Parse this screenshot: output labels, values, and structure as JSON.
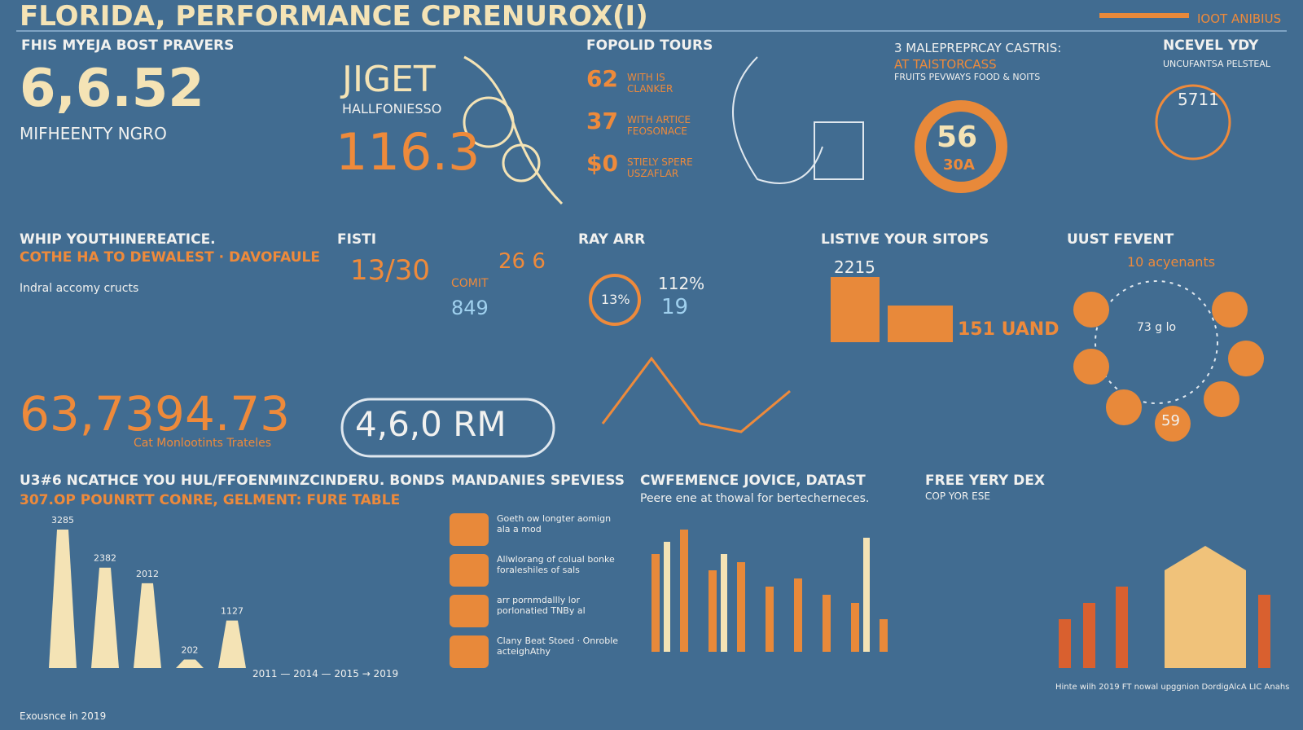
{
  "header": {
    "title": "FLORIDA, PERFORMANCE CPRENUROX(I)",
    "tag": "IOOT ANIBIUS"
  },
  "panels": {
    "p1": {
      "title": "FHIS MYEJA BOST PRAVERS",
      "big": "6,6.52",
      "sub": "MIFHEENTY NGRO"
    },
    "p2": {
      "big": "JIGET",
      "sub": "HALLFONIESSO",
      "num": "116.3"
    },
    "p3": {
      "title": "FOPOLID TOURS",
      "rows": [
        {
          "num": "62",
          "text": "WITH IS CLANKER"
        },
        {
          "num": "37",
          "text": "WITH ARTICE FEOSONACE"
        },
        {
          "num": "$0",
          "text": "STIELY SPERE USZAFLAR"
        }
      ]
    },
    "p4": {
      "title": "3 MALEPREPRCAY CASTRIS:",
      "title2": "AT TAISTORCASS",
      "sub": "FRUITS PEVWAYS FOOD & NOITS",
      "num": "56",
      "num2": "30A"
    },
    "p5": {
      "title": "NCEVEL YDY",
      "sub": "UNCUFANTSA PELSTEAL",
      "num": "5711"
    },
    "p6": {
      "title": "WHIP YOUTHINEREATICE.",
      "sub": "COTHE HA TO DEWALEST · DAVOFAULE",
      "note": "Indral accomy cructs"
    },
    "p7": {
      "title": "FISTI",
      "a": "13/30",
      "b": "26 6",
      "c": "COMIT",
      "d": "849"
    },
    "p8": {
      "title": "RAY ARR",
      "a": "13%",
      "b": "112%",
      "c": "19"
    },
    "p9": {
      "title": "LISTIVE YOUR SITOPS",
      "a": "2215",
      "b": "151 UAND"
    },
    "p10": {
      "title": "UUST FEVENT",
      "a": "10 acyenants",
      "b": "73 g lo",
      "c": "59"
    },
    "p11": {
      "big": "63,7394.73",
      "sub": "Cat Monlootints Trateles"
    },
    "p12": {
      "big": "4,6,0 RM"
    },
    "p13": {
      "title": "U3#6 NCATHCE YOU HUL/FFOENMINZCINDERU. BONDS",
      "sub": "307.OP POUNRTT CONRE, GELMENT: FURE TABLE",
      "bars": [
        3285,
        2382,
        2012,
        202,
        1127
      ],
      "axis": "2011 — 2014 — 2015 → 2019",
      "foot": "Exousnce in 2019"
    },
    "p14": {
      "title": "MANDANIES SPEVIESS",
      "items": [
        "Goeth ow longter aomign ala a mod",
        "Allwlorang of colual bonke foraleshiles of sals",
        "arr pornmdallly lor porlonatied TNBy al",
        "Clany Beat Stoed · Onroble acteighAthy"
      ]
    },
    "p15": {
      "title": "CWFEMENCE JOVICE, DATAST",
      "sub": "Peere ene at thowal for bertecherneces."
    },
    "p16": {
      "title": "FREE YERY DEX",
      "sub": "COP YOR ESE"
    },
    "p17": {
      "foot": "Hinte wilh 2019 FT nowal upggnion DordigAlcA LIC Anahs"
    }
  }
}
